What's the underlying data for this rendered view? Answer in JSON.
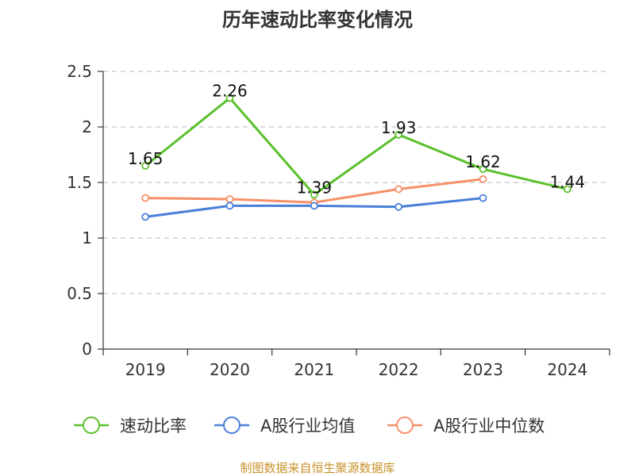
{
  "chart_data": {
    "type": "line",
    "title": "历年速动比率变化情况",
    "categories": [
      "2019",
      "2020",
      "2021",
      "2022",
      "2023",
      "2024"
    ],
    "y_ticks": [
      "0",
      "0.5",
      "1",
      "1.5",
      "2",
      "2.5"
    ],
    "ylim": [
      0,
      2.5
    ],
    "grid": true,
    "legend_position": "bottom",
    "series": [
      {
        "name": "速动比率",
        "color": "#5ac02c",
        "values": [
          1.65,
          2.26,
          1.39,
          1.93,
          1.62,
          1.44
        ],
        "data_labels": [
          "1.65",
          "2.26",
          "1.39",
          "1.93",
          "1.62",
          "1.44"
        ]
      },
      {
        "name": "A股行业均值",
        "color": "#4a7fd8",
        "values": [
          1.19,
          1.29,
          1.29,
          1.28,
          1.36,
          null
        ]
      },
      {
        "name": "A股行业中位数",
        "color": "#f6906a",
        "values": [
          1.36,
          1.35,
          1.32,
          1.44,
          1.53,
          null
        ]
      }
    ]
  },
  "source": {
    "text": "制图数据来自恒生聚源数据库",
    "color": "#c8922a"
  }
}
